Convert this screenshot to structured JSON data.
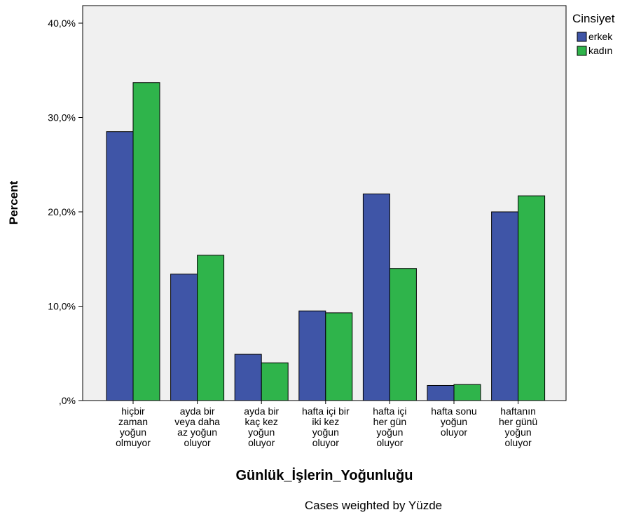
{
  "chart_data": {
    "type": "bar",
    "title": "",
    "xlabel": "Günlük_İşlerin_Yoğunluğu",
    "ylabel": "Percent",
    "ylim": [
      0,
      42
    ],
    "y_ticks": [
      0,
      10,
      20,
      30,
      40
    ],
    "y_tick_labels": [
      ",0%",
      "10,0%",
      "20,0%",
      "30,0%",
      "40,0%"
    ],
    "grid": false,
    "legend": {
      "title": "Cinsiyet",
      "placement": "right",
      "entries": [
        "erkek",
        "kadın"
      ]
    },
    "categories": [
      [
        "hiçbir",
        "zaman",
        "yoğun",
        "olmuyor"
      ],
      [
        "ayda bir",
        "veya daha",
        "az yoğun",
        "oluyor"
      ],
      [
        "ayda bir",
        "kaç kez",
        "yoğun",
        "oluyor"
      ],
      [
        "hafta içi bir",
        "iki kez",
        "yoğun",
        "oluyor"
      ],
      [
        "hafta içi",
        "her gün",
        "yoğun",
        "oluyor"
      ],
      [
        "hafta sonu",
        "yoğun",
        "oluyor"
      ],
      [
        "haftanın",
        "her günü",
        "yoğun",
        "oluyor"
      ]
    ],
    "series": [
      {
        "name": "erkek",
        "color": "#3f55a7",
        "values": [
          28.5,
          13.4,
          4.9,
          9.5,
          21.9,
          1.6,
          20.0
        ]
      },
      {
        "name": "kadın",
        "color": "#2fb44b",
        "values": [
          33.7,
          15.4,
          4.0,
          9.3,
          14.0,
          1.7,
          21.7
        ]
      }
    ],
    "footnote": "Cases weighted by Yüzde"
  },
  "colors": {
    "plot_background": "#f0f0f0",
    "axis": "#000000",
    "bar_edge": "#000000"
  }
}
